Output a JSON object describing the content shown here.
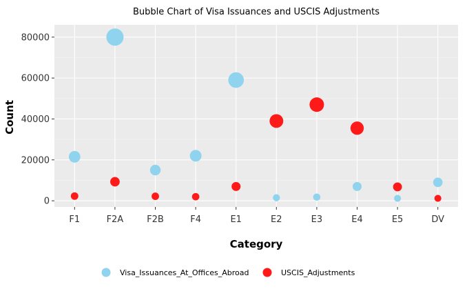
{
  "chart_data": {
    "type": "scatter",
    "title": "Bubble Chart of Visa Issuances and USCIS Adjustments",
    "xlabel": "Category",
    "ylabel": "Count",
    "categories": [
      "F1",
      "F2A",
      "F2B",
      "F4",
      "E1",
      "E2",
      "E3",
      "E4",
      "E5",
      "DV"
    ],
    "ylim": [
      -3000,
      86000
    ],
    "yticks": [
      0,
      20000,
      40000,
      60000,
      80000
    ],
    "grid": true,
    "legend_position": "bottom",
    "series": [
      {
        "name": "Visa_Issuances_At_Offices_Abroad",
        "color": "#8fd3ef",
        "values": [
          21500,
          80000,
          15000,
          22000,
          59000,
          1500,
          1800,
          7000,
          1200,
          9000
        ]
      },
      {
        "name": "USCIS_Adjustments",
        "color": "#ff1a1a",
        "values": [
          2300,
          9300,
          2200,
          2000,
          7000,
          39000,
          47000,
          35500,
          6800,
          1200
        ]
      }
    ]
  }
}
